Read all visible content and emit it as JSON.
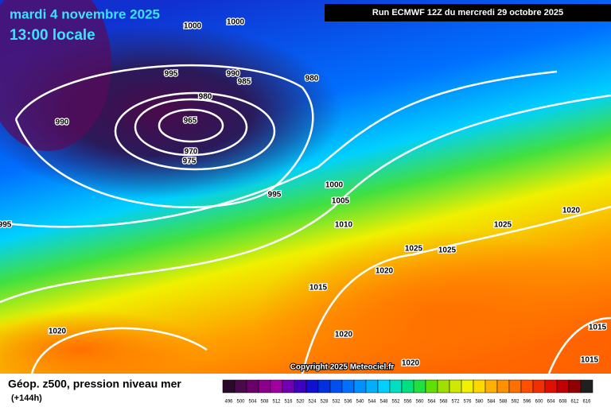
{
  "header": {
    "date": "mardi 4 novembre 2025",
    "time": "13:00 locale",
    "run": "Run ECMWF 12Z du mercredi 29 octobre 2025"
  },
  "isobar_labels": [
    1000,
    1000,
    995,
    990,
    985,
    980,
    980,
    965,
    970,
    975,
    990,
    995,
    1000,
    1005,
    1010,
    995,
    1025,
    1025,
    1025,
    1020,
    1020,
    1015,
    1020,
    1020,
    1020,
    1015,
    1015
  ],
  "copyright": "Copyright 2025 Meteociel.fr",
  "footer": {
    "title": "Géop. z500, pression niveau mer",
    "lead": "(+144h)"
  },
  "scale": {
    "labels": [
      496,
      500,
      504,
      508,
      512,
      516,
      520,
      524,
      528,
      532,
      536,
      540,
      544,
      548,
      552,
      556,
      560,
      564,
      568,
      572,
      576,
      580,
      584,
      588,
      592,
      596,
      600,
      604,
      608,
      612,
      616
    ],
    "colors": [
      "#2a0a2a",
      "#4a0a4a",
      "#6a006a",
      "#8a008a",
      "#a000a0",
      "#7000b0",
      "#4000c0",
      "#1010d0",
      "#0030e0",
      "#0050f0",
      "#0070ff",
      "#0090ff",
      "#00b0ff",
      "#00d0ff",
      "#00e0c0",
      "#00e080",
      "#20e040",
      "#60e000",
      "#a0e000",
      "#d0e800",
      "#f0f000",
      "#ffd800",
      "#ffb000",
      "#ff9000",
      "#ff7000",
      "#ff5000",
      "#f03000",
      "#e01000",
      "#c00000",
      "#900000",
      "#202020"
    ]
  }
}
